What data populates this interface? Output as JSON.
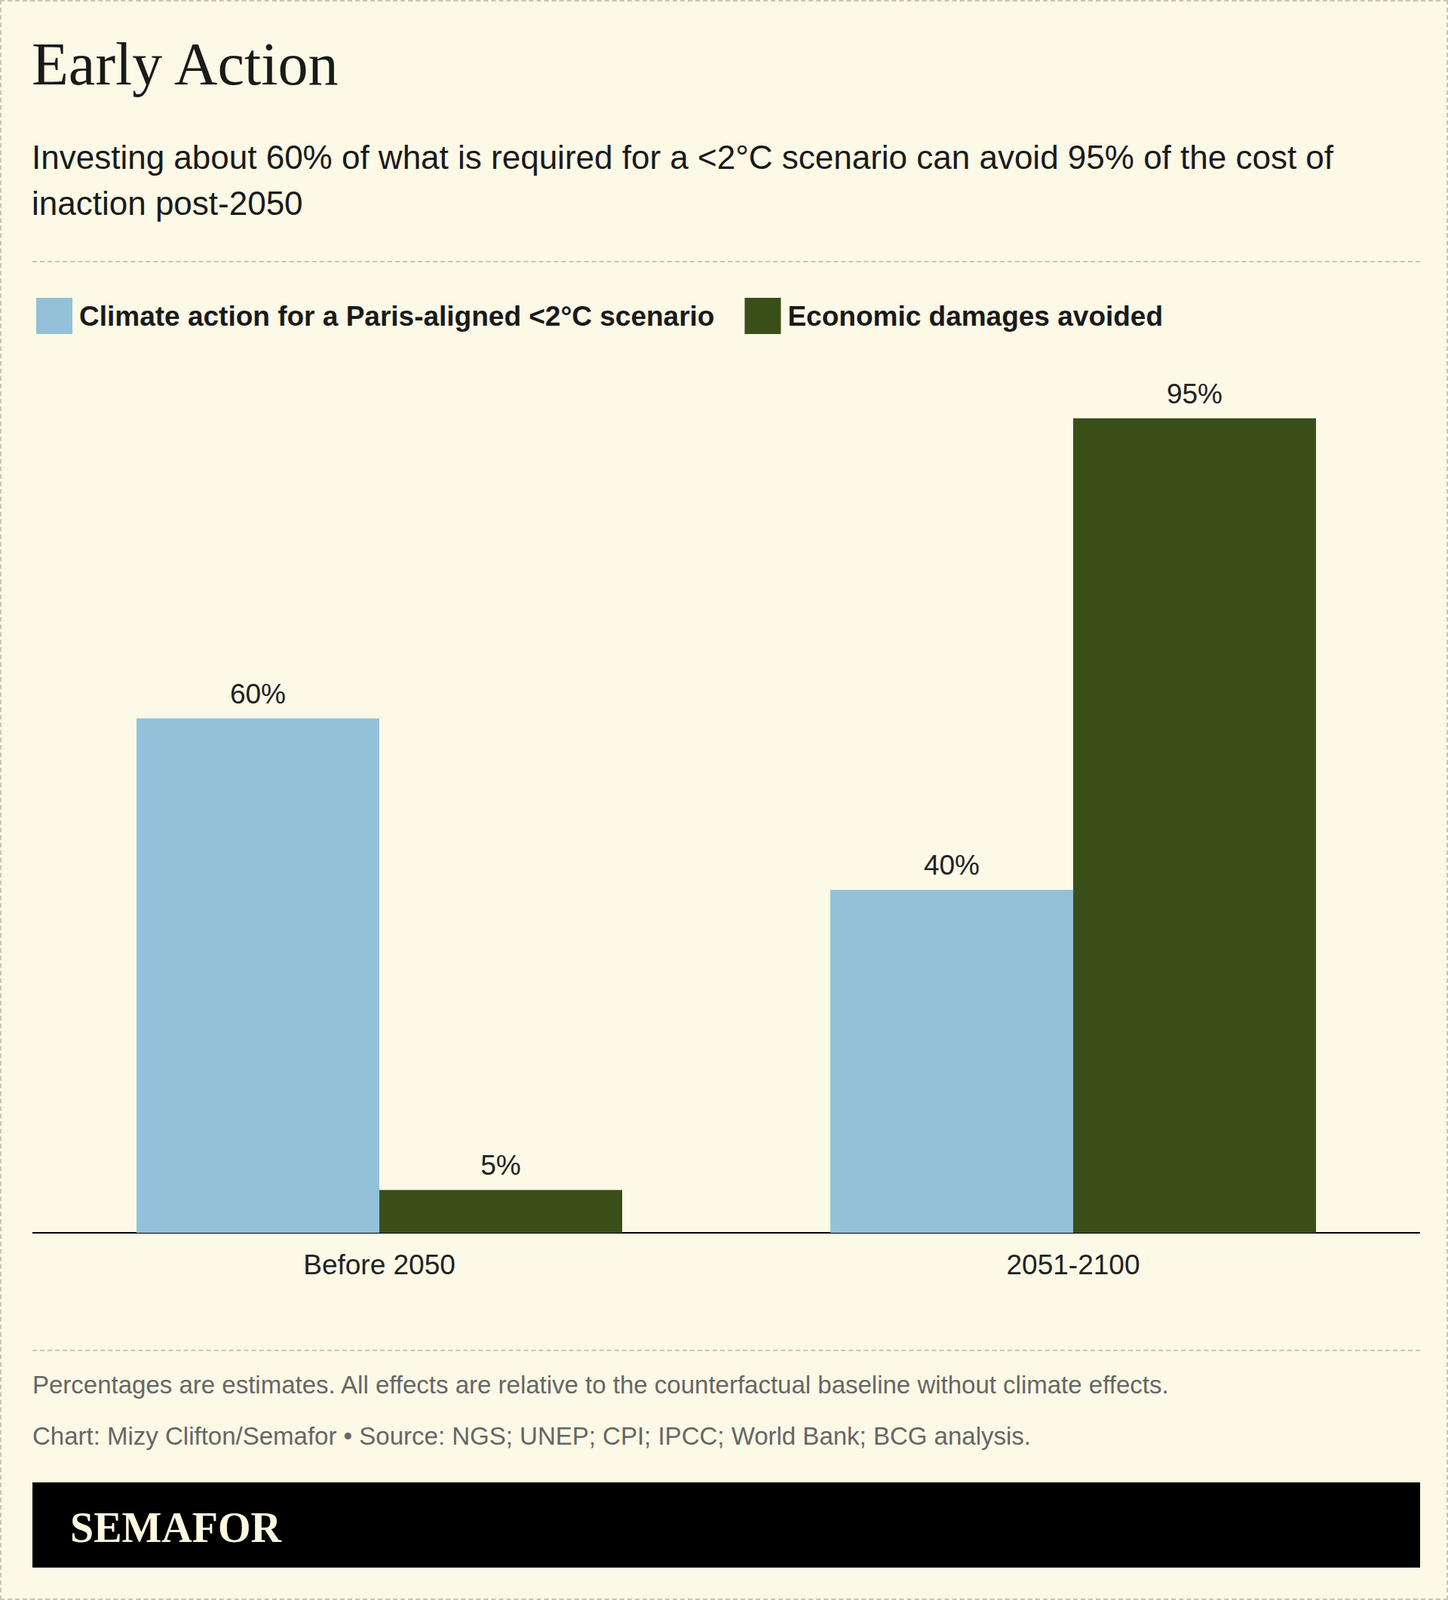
{
  "chart_data": {
    "type": "bar",
    "title": "Early Action",
    "subtitle": "Investing about 60% of what is required for a <2°C scenario can avoid 95% of the cost of inaction post-2050",
    "notes": [
      "Percentages are estimates. All effects are relative to the counterfactual baseline without climate effects.",
      "Chart: Mizy Clifton/Semafor • Source: NGS; UNEP; CPI; IPCC; World Bank; BCG analysis."
    ],
    "brand": "SEMAFOR",
    "categories": [
      "Before 2050",
      "2051-2100"
    ],
    "series": [
      {
        "name": "Climate action for a Paris-aligned <2°C scenario",
        "color": "#92c1d9",
        "values": [
          60,
          40
        ],
        "value_labels": [
          "60%",
          "40%"
        ]
      },
      {
        "name": "Economic damages avoided",
        "color": "#3a4f17",
        "values": [
          5,
          95
        ],
        "value_labels": [
          "5%",
          "95%"
        ]
      }
    ],
    "ylim": [
      0,
      100
    ],
    "yticks": [
      0,
      100
    ],
    "grid": false,
    "legend": "top-left",
    "data_labels": true,
    "tick_labels": "x"
  }
}
